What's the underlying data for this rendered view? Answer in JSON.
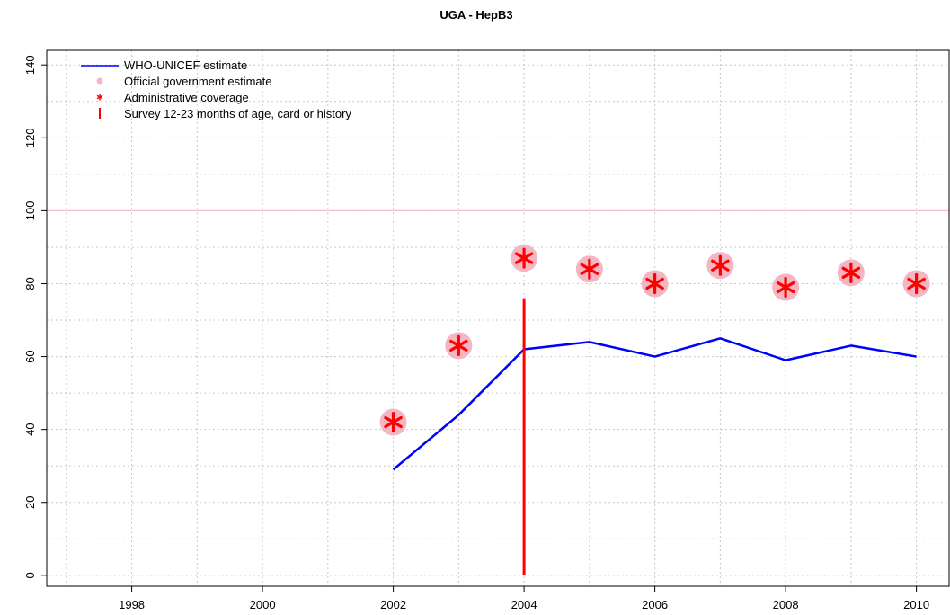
{
  "chart_data": {
    "type": "line",
    "title": "UGA  -  HepB3",
    "xlabel": "",
    "ylabel": "",
    "xlim": [
      1996.7,
      2010.5
    ],
    "ylim": [
      -3,
      144
    ],
    "x_ticks": [
      1998,
      2000,
      2002,
      2004,
      2006,
      2008,
      2010
    ],
    "y_ticks": [
      0,
      20,
      40,
      60,
      80,
      100,
      120,
      140
    ],
    "grid": true,
    "grid_x": [
      1997,
      1998,
      1999,
      2000,
      2001,
      2002,
      2003,
      2004,
      2005,
      2006,
      2007,
      2008,
      2009,
      2010
    ],
    "grid_y": [
      0,
      10,
      20,
      30,
      40,
      50,
      60,
      70,
      80,
      90,
      100,
      110,
      120,
      130,
      140
    ],
    "reference_line": {
      "y": 100,
      "color": "#f4c0c8"
    },
    "legend_position": "top-left",
    "legend": [
      {
        "key": "who_unicef",
        "label": "WHO-UNICEF estimate",
        "symbol": "line",
        "color": "#0000ff"
      },
      {
        "key": "official",
        "label": "Official government estimate",
        "symbol": "dot",
        "color": "#f4b6c2"
      },
      {
        "key": "admin",
        "label": "Administrative coverage",
        "symbol": "star",
        "color": "#ff0000"
      },
      {
        "key": "survey",
        "label": "Survey 12-23 months of age, card or history",
        "symbol": "bar",
        "color": "#ff0000"
      }
    ],
    "series": [
      {
        "name": "WHO-UNICEF estimate",
        "type": "line",
        "color": "#0000ff",
        "x": [
          2002,
          2003,
          2004,
          2005,
          2006,
          2007,
          2008,
          2009,
          2010
        ],
        "values": [
          29,
          44,
          62,
          64,
          60,
          65,
          59,
          63,
          60
        ]
      },
      {
        "name": "Official government estimate",
        "type": "scatter",
        "color": "#f4b6c2",
        "x": [
          2002,
          2003,
          2004,
          2005,
          2006,
          2007,
          2008,
          2009,
          2010
        ],
        "values": [
          42,
          63,
          87,
          84,
          80,
          85,
          79,
          83,
          80
        ]
      },
      {
        "name": "Administrative coverage",
        "type": "scatter",
        "color": "#ff0000",
        "x": [
          2002,
          2003,
          2004,
          2005,
          2006,
          2007,
          2008,
          2009,
          2010
        ],
        "values": [
          42,
          63,
          87,
          84,
          80,
          85,
          79,
          83,
          80
        ]
      },
      {
        "name": "Survey 12-23 months of age, card or history",
        "type": "vbar",
        "color": "#ff0000",
        "x": [
          2004
        ],
        "low": [
          0
        ],
        "high": [
          76
        ]
      }
    ]
  }
}
